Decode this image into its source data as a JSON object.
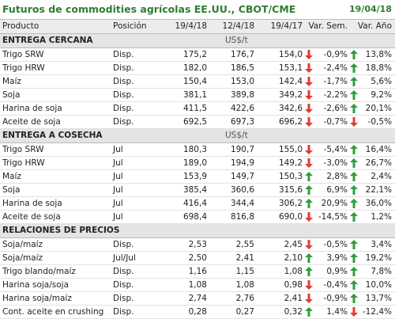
{
  "header": {
    "title": "Futuros de commodities agrícolas EE.UU., CBOT/CME",
    "date": "19/04/18"
  },
  "columns": [
    "Producto",
    "Posición",
    "19/4/18",
    "12/4/18",
    "19/4/17",
    "Var. Sem.",
    "Var. Año"
  ],
  "sections": [
    {
      "title": "ENTREGA CERCANA",
      "unit": "US$/t",
      "rows": [
        [
          "Trigo SRW",
          "Disp.",
          "175,2",
          "176,7",
          "154,0",
          "-0,9%",
          "13,8%"
        ],
        [
          "Trigo HRW",
          "Disp.",
          "182,0",
          "186,5",
          "153,1",
          "-2,4%",
          "18,8%"
        ],
        [
          "Maíz",
          "Disp.",
          "150,4",
          "153,0",
          "142,4",
          "-1,7%",
          "5,6%"
        ],
        [
          "Soja",
          "Disp.",
          "381,1",
          "389,8",
          "349,2",
          "-2,2%",
          "9,2%"
        ],
        [
          "Harina de soja",
          "Disp.",
          "411,5",
          "422,6",
          "342,6",
          "-2,6%",
          "20,1%"
        ],
        [
          "Aceite de soja",
          "Disp.",
          "692,5",
          "697,3",
          "696,2",
          "-0,7%",
          "-0,5%"
        ]
      ]
    },
    {
      "title": "ENTREGA A COSECHA",
      "unit": "US$/t",
      "rows": [
        [
          "Trigo SRW",
          "Jul",
          "180,3",
          "190,7",
          "155,0",
          "-5,4%",
          "16,4%"
        ],
        [
          "Trigo HRW",
          "Jul",
          "189,0",
          "194,9",
          "149,2",
          "-3,0%",
          "26,7%"
        ],
        [
          "Maíz",
          "Jul",
          "153,9",
          "149,7",
          "150,3",
          "2,8%",
          "2,4%"
        ],
        [
          "Soja",
          "Jul",
          "385,4",
          "360,6",
          "315,6",
          "6,9%",
          "22,1%"
        ],
        [
          "Harina de soja",
          "Jul",
          "416,4",
          "344,4",
          "306,2",
          "20,9%",
          "36,0%"
        ],
        [
          "Aceite de soja",
          "Jul",
          "698,4",
          "816,8",
          "690,0",
          "-14,5%",
          "1,2%"
        ]
      ]
    },
    {
      "title": "RELACIONES DE PRECIOS",
      "rows": [
        [
          "Soja/maíz",
          "Disp.",
          "2,53",
          "2,55",
          "2,45",
          "-0,5%",
          "3,4%"
        ],
        [
          "Soja/maíz",
          "Jul/Jul",
          "2,50",
          "2,41",
          "2,10",
          "3,9%",
          "19,2%"
        ],
        [
          "Trigo blando/maíz",
          "Disp.",
          "1,16",
          "1,15",
          "1,08",
          "0,9%",
          "7,8%"
        ],
        [
          "Harina soja/soja",
          "Disp.",
          "1,08",
          "1,08",
          "0,98",
          "-0,4%",
          "10,0%"
        ],
        [
          "Harina soja/maíz",
          "Disp.",
          "2,74",
          "2,76",
          "2,41",
          "-0,9%",
          "13,7%"
        ],
        [
          "Cont. aceite en crushing",
          "Disp.",
          "0,28",
          "0,27",
          "0,32",
          "1,4%",
          "-12,4%"
        ]
      ]
    }
  ]
}
